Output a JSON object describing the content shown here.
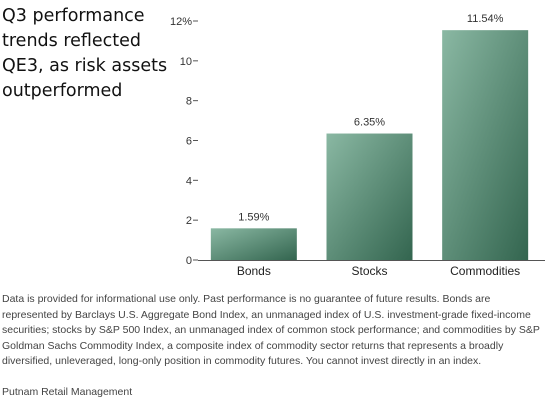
{
  "headline": "Q3 performance\ntrends reflected\nQE3, as risk assets\noutperformed",
  "chart_data": {
    "type": "bar",
    "title": "Q3 performance trends reflected QE3, as risk assets outperformed",
    "categories": [
      "Bonds",
      "Stocks",
      "Commodities"
    ],
    "values": [
      1.59,
      6.35,
      11.54
    ],
    "data_labels": [
      "1.59%",
      "6.35%",
      "11.54%"
    ],
    "ylim": [
      0,
      12
    ],
    "yticks": [
      0,
      2,
      4,
      6,
      8,
      10,
      12
    ],
    "ytick_labels": [
      "0",
      "2",
      "4",
      "6",
      "8",
      "10",
      "12%"
    ],
    "xlabel": "",
    "ylabel": "",
    "grid": false,
    "bar_color_light": "#8ab8a3",
    "bar_color_dark": "#33654f"
  },
  "footnote": "Data is provided for informational use only. Past performance is no guarantee of future results. Bonds are represented by Barclays U.S. Aggregate Bond Index, an unmanaged index of U.S. investment-grade fixed-income securities; stocks by S&P 500 Index, an unmanaged index of common stock performance; and commodities by S&P Goldman Sachs Commodity Index, a composite index of commodity sector returns that represents a broadly diversified, unleveraged, long-only position in commodity futures. You cannot invest directly in an index.",
  "source": "Putnam Retail Management"
}
